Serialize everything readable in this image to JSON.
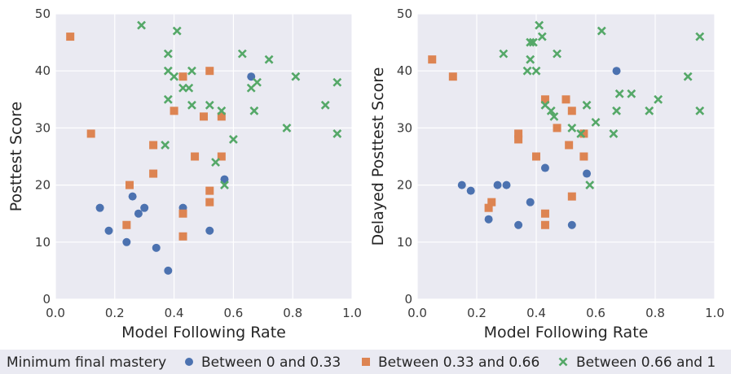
{
  "chart_data": [
    {
      "type": "scatter",
      "xlabel": "Model Following Rate",
      "ylabel": "Posttest Score",
      "xlim": [
        0.0,
        1.0
      ],
      "ylim": [
        0,
        50
      ],
      "x_ticks": [
        "0.0",
        "0.2",
        "0.4",
        "0.6",
        "0.8",
        "1.0"
      ],
      "y_ticks": [
        "0",
        "10",
        "20",
        "30",
        "40",
        "50"
      ],
      "grid": true,
      "series": [
        {
          "name": "Between 0 and 0.33",
          "marker": "circle",
          "color": "#4c72b0",
          "points": [
            [
              0.15,
              16
            ],
            [
              0.18,
              12
            ],
            [
              0.24,
              10
            ],
            [
              0.26,
              18
            ],
            [
              0.28,
              15
            ],
            [
              0.3,
              16
            ],
            [
              0.34,
              9
            ],
            [
              0.38,
              5
            ],
            [
              0.43,
              16
            ],
            [
              0.52,
              12
            ],
            [
              0.57,
              21
            ],
            [
              0.66,
              39
            ]
          ]
        },
        {
          "name": "Between 0.33 and 0.66",
          "marker": "square",
          "color": "#dd8452",
          "points": [
            [
              0.05,
              46
            ],
            [
              0.12,
              29
            ],
            [
              0.24,
              13
            ],
            [
              0.25,
              20
            ],
            [
              0.33,
              27
            ],
            [
              0.33,
              22
            ],
            [
              0.4,
              33
            ],
            [
              0.43,
              39
            ],
            [
              0.43,
              11
            ],
            [
              0.43,
              15
            ],
            [
              0.47,
              25
            ],
            [
              0.5,
              32
            ],
            [
              0.52,
              40
            ],
            [
              0.52,
              19
            ],
            [
              0.52,
              17
            ],
            [
              0.56,
              32
            ],
            [
              0.56,
              25
            ]
          ]
        },
        {
          "name": "Between 0.66 and 1",
          "marker": "x",
          "color": "#55a868",
          "points": [
            [
              0.29,
              48
            ],
            [
              0.37,
              27
            ],
            [
              0.38,
              35
            ],
            [
              0.38,
              43
            ],
            [
              0.38,
              40
            ],
            [
              0.4,
              39
            ],
            [
              0.41,
              47
            ],
            [
              0.43,
              37
            ],
            [
              0.45,
              37
            ],
            [
              0.46,
              40
            ],
            [
              0.46,
              34
            ],
            [
              0.52,
              34
            ],
            [
              0.54,
              24
            ],
            [
              0.56,
              33
            ],
            [
              0.57,
              20
            ],
            [
              0.6,
              28
            ],
            [
              0.63,
              43
            ],
            [
              0.66,
              37
            ],
            [
              0.67,
              33
            ],
            [
              0.68,
              38
            ],
            [
              0.72,
              42
            ],
            [
              0.78,
              30
            ],
            [
              0.81,
              39
            ],
            [
              0.91,
              34
            ],
            [
              0.95,
              38
            ],
            [
              0.95,
              29
            ]
          ]
        }
      ]
    },
    {
      "type": "scatter",
      "xlabel": "Model Following Rate",
      "ylabel": "Delayed Posttest Score",
      "xlim": [
        0.0,
        1.0
      ],
      "ylim": [
        0,
        50
      ],
      "x_ticks": [
        "0.0",
        "0.2",
        "0.4",
        "0.6",
        "0.8",
        "1.0"
      ],
      "y_ticks": [
        "0",
        "10",
        "20",
        "30",
        "40",
        "50"
      ],
      "grid": true,
      "series": [
        {
          "name": "Between 0 and 0.33",
          "marker": "circle",
          "color": "#4c72b0",
          "points": [
            [
              0.15,
              20
            ],
            [
              0.18,
              19
            ],
            [
              0.24,
              14
            ],
            [
              0.27,
              20
            ],
            [
              0.3,
              20
            ],
            [
              0.34,
              13
            ],
            [
              0.38,
              17
            ],
            [
              0.43,
              23
            ],
            [
              0.52,
              13
            ],
            [
              0.57,
              22
            ],
            [
              0.67,
              40
            ]
          ]
        },
        {
          "name": "Between 0.33 and 0.66",
          "marker": "square",
          "color": "#dd8452",
          "points": [
            [
              0.05,
              42
            ],
            [
              0.12,
              39
            ],
            [
              0.24,
              16
            ],
            [
              0.25,
              17
            ],
            [
              0.34,
              29
            ],
            [
              0.34,
              28
            ],
            [
              0.4,
              25
            ],
            [
              0.43,
              35
            ],
            [
              0.43,
              15
            ],
            [
              0.43,
              13
            ],
            [
              0.47,
              30
            ],
            [
              0.5,
              35
            ],
            [
              0.51,
              27
            ],
            [
              0.52,
              33
            ],
            [
              0.52,
              18
            ],
            [
              0.56,
              29
            ],
            [
              0.56,
              25
            ]
          ]
        },
        {
          "name": "Between 0.66 and 1",
          "marker": "x",
          "color": "#55a868",
          "points": [
            [
              0.29,
              43
            ],
            [
              0.37,
              40
            ],
            [
              0.38,
              45
            ],
            [
              0.38,
              42
            ],
            [
              0.39,
              45
            ],
            [
              0.4,
              40
            ],
            [
              0.41,
              48
            ],
            [
              0.42,
              46
            ],
            [
              0.43,
              34
            ],
            [
              0.45,
              33
            ],
            [
              0.46,
              32
            ],
            [
              0.47,
              43
            ],
            [
              0.52,
              30
            ],
            [
              0.55,
              29
            ],
            [
              0.57,
              34
            ],
            [
              0.58,
              20
            ],
            [
              0.6,
              31
            ],
            [
              0.62,
              47
            ],
            [
              0.66,
              29
            ],
            [
              0.67,
              33
            ],
            [
              0.68,
              36
            ],
            [
              0.72,
              36
            ],
            [
              0.78,
              33
            ],
            [
              0.81,
              35
            ],
            [
              0.91,
              39
            ],
            [
              0.95,
              46
            ],
            [
              0.95,
              33
            ]
          ]
        }
      ]
    }
  ],
  "legend": {
    "title": "Minimum final mastery",
    "position": "bottom",
    "items": [
      {
        "label": "Between 0 and 0.33",
        "marker": "circle",
        "color": "#4c72b0"
      },
      {
        "label": "Between 0.33 and 0.66",
        "marker": "square",
        "color": "#dd8452"
      },
      {
        "label": "Between 0.66 and 1",
        "marker": "x",
        "color": "#55a868"
      }
    ]
  },
  "style": {
    "plot_background": "#eaeaf2",
    "grid_color": "#ffffff",
    "legend_band_background": "#eaeaf2"
  }
}
